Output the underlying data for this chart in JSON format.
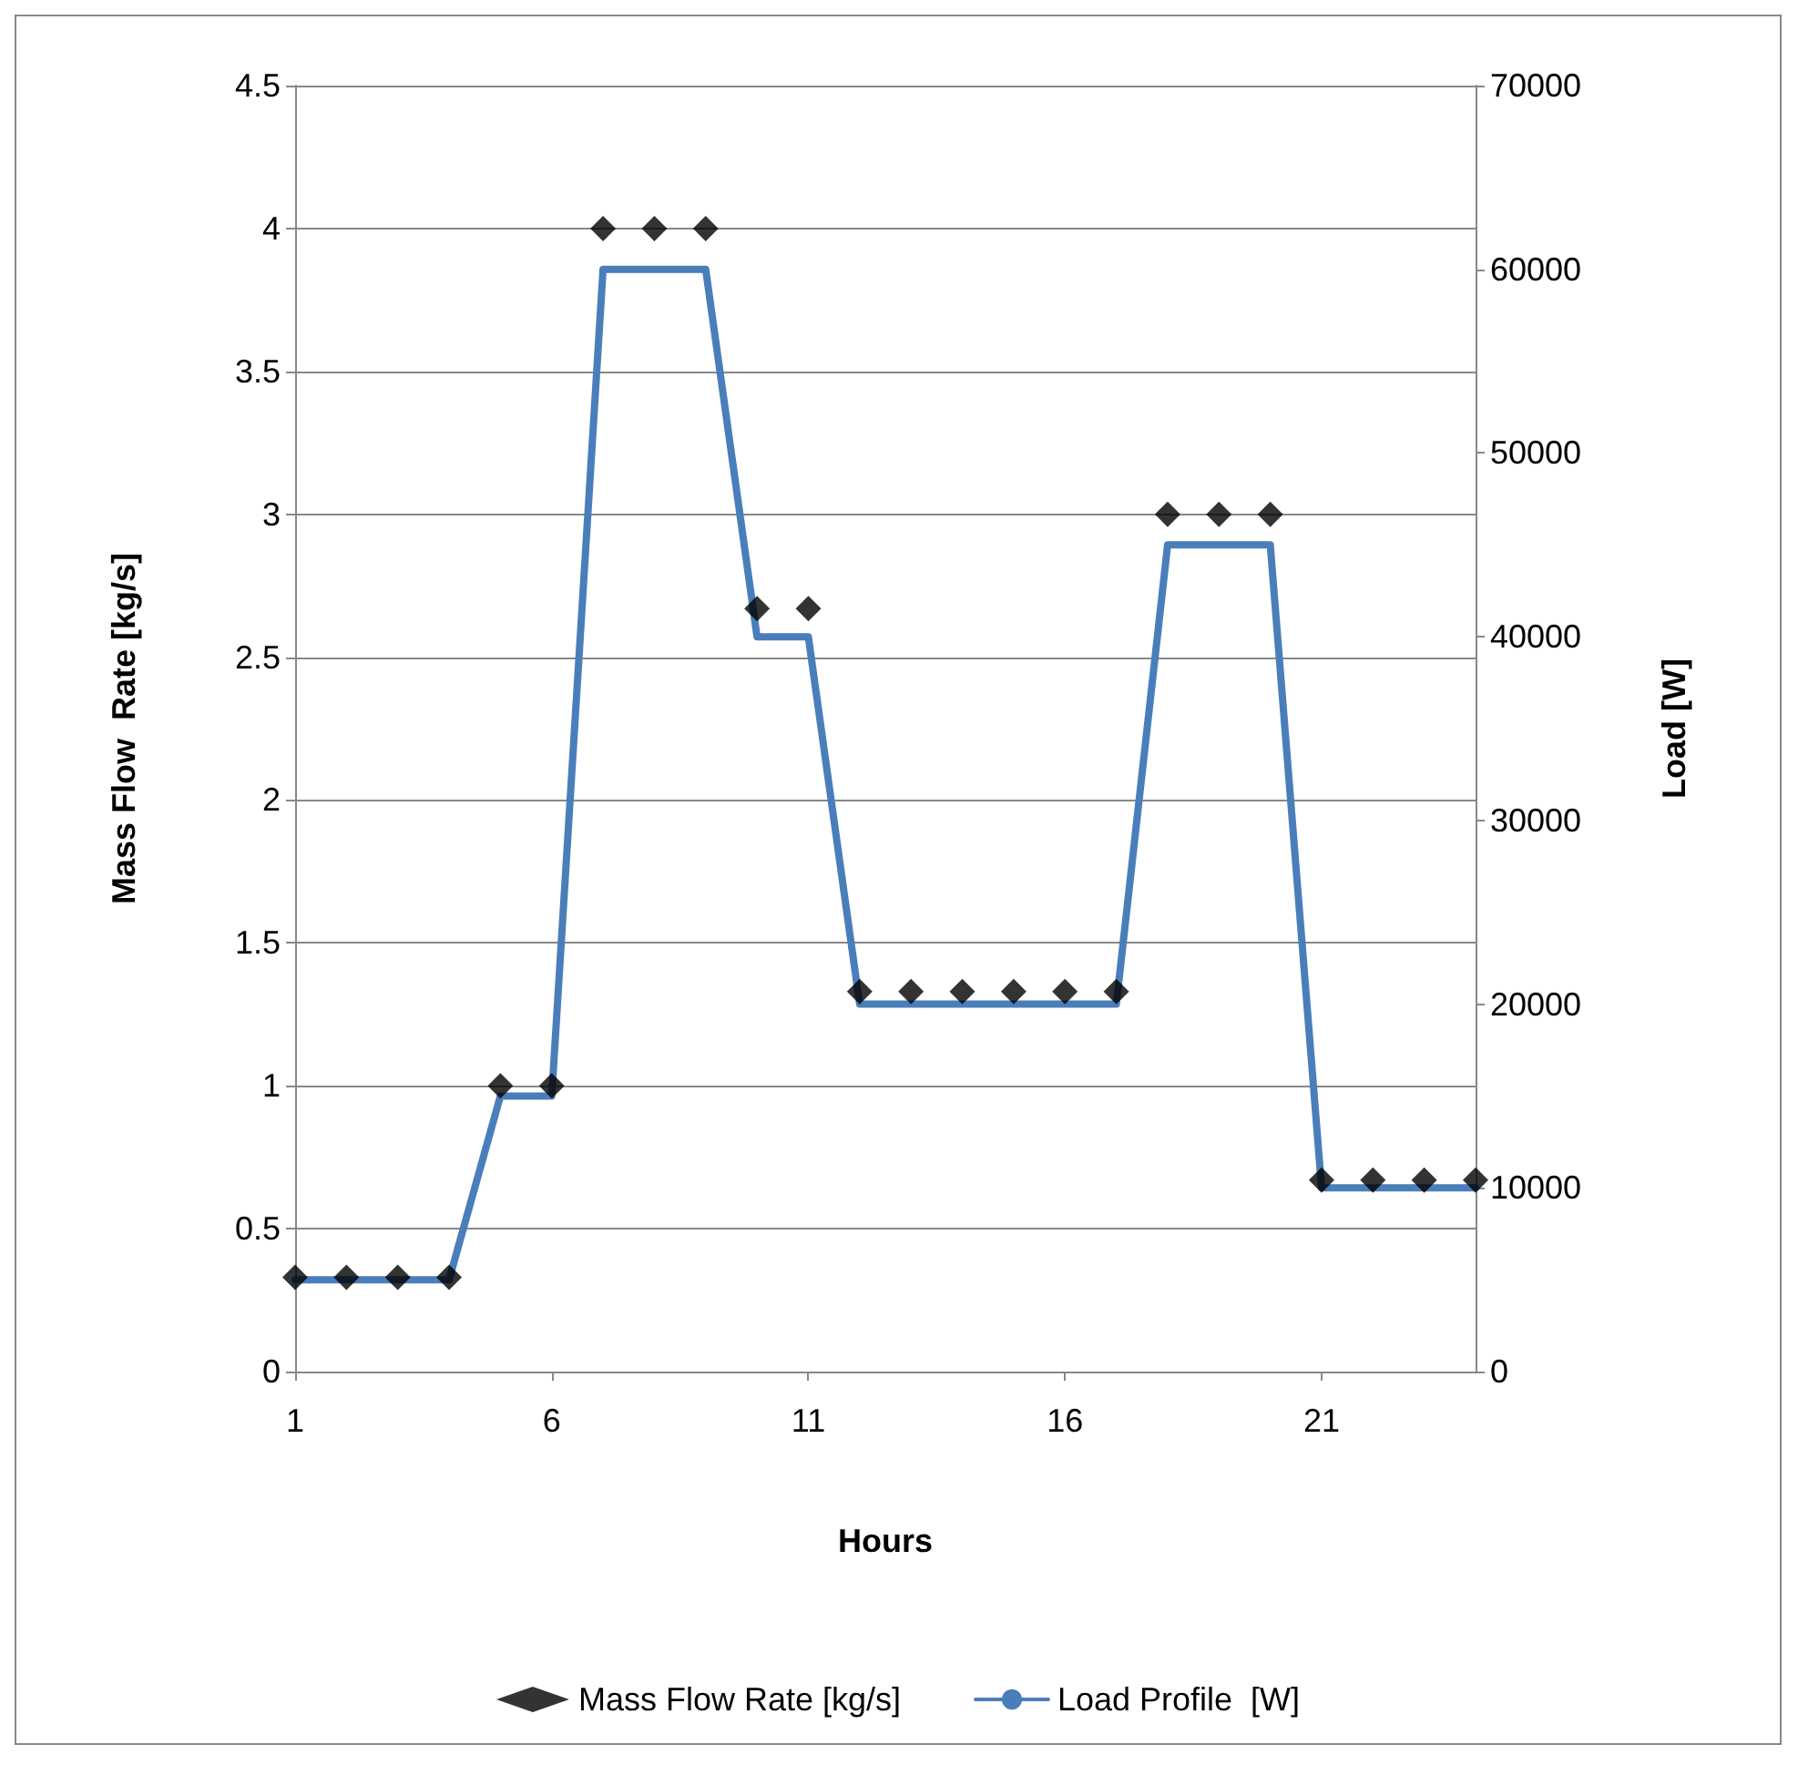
{
  "chart_data": {
    "type": "scatter",
    "xlabel": "Hours",
    "ylabel": "Mass Flow  Rate [kg/s]",
    "y2label": "Load [W]",
    "x": [
      1,
      2,
      3,
      4,
      5,
      6,
      7,
      8,
      9,
      10,
      11,
      12,
      13,
      14,
      15,
      16,
      17,
      18,
      19,
      20,
      21,
      22,
      23,
      24
    ],
    "series": [
      {
        "name": "Mass Flow Rate [kg/s]",
        "color": "#000000",
        "marker": "diamond",
        "values": [
          0.33,
          0.33,
          0.33,
          0.33,
          1,
          1,
          4,
          4,
          4,
          2.67,
          2.67,
          1.33,
          1.33,
          1.33,
          1.33,
          1.33,
          1.33,
          3,
          3,
          3,
          0.67,
          0.67,
          0.67,
          0.67
        ]
      },
      {
        "name": "Load Profile  [W]",
        "type": "line",
        "axis": "y2",
        "color": "#4a7ebb",
        "marker": "none",
        "line_style": "solid",
        "values": [
          5000,
          5000,
          5000,
          5000,
          15000,
          15000,
          60000,
          60000,
          60000,
          40000,
          40000,
          20000,
          20000,
          20000,
          20000,
          20000,
          20000,
          45000,
          45000,
          45000,
          10000,
          10000,
          10000,
          10000
        ]
      }
    ],
    "xlim": [
      1,
      24
    ],
    "xticks": [
      1,
      6,
      11,
      16,
      21
    ],
    "ylim": [
      0,
      4.5
    ],
    "yticks": [
      0,
      0.5,
      1,
      1.5,
      2,
      2.5,
      3,
      3.5,
      4,
      4.5
    ],
    "y2lim": [
      0,
      70000
    ],
    "y2ticks": [
      0,
      10000,
      20000,
      30000,
      40000,
      50000,
      60000,
      70000
    ],
    "grid": "y",
    "legend": "bottom"
  }
}
